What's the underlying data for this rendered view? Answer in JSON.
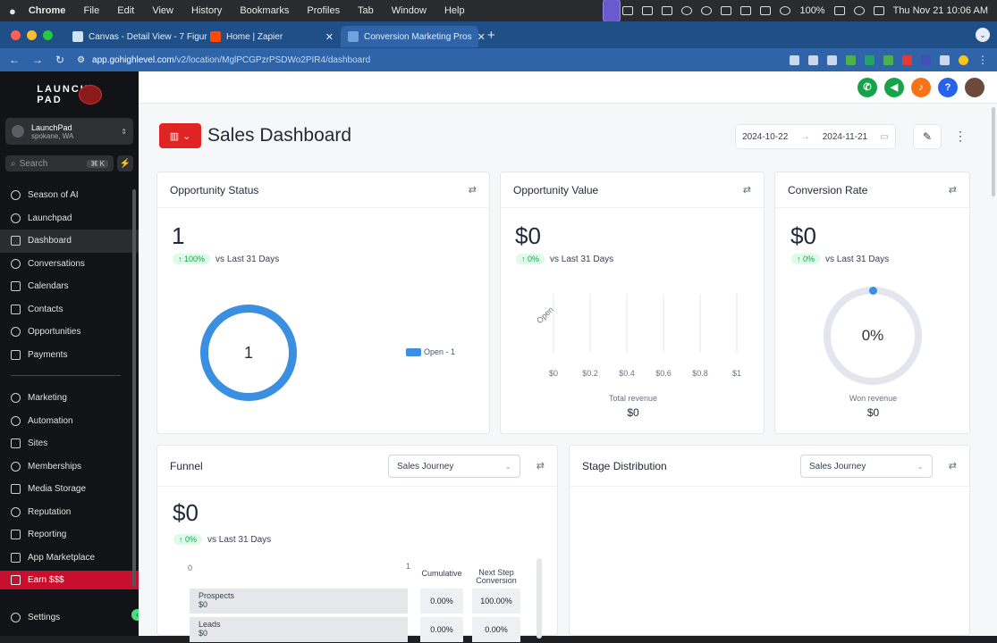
{
  "menubar": {
    "app": "Chrome",
    "items": [
      "File",
      "Edit",
      "View",
      "History",
      "Bookmarks",
      "Profiles",
      "Tab",
      "Window",
      "Help"
    ],
    "battery": "100%",
    "clock": "Thu Nov 21  10:06 AM"
  },
  "tabs": [
    {
      "title": "Canvas - Detail View - 7 Figur",
      "color": "#cfe3f7"
    },
    {
      "title": "Home | Zapier",
      "color": "#ff4a00"
    },
    {
      "title": "Conversion Marketing Pros",
      "color": "#3b6fb0"
    }
  ],
  "address": {
    "host": "app.gohighlevel.com",
    "path": "/v2/location/MglPCGPzrPSDWo2PIR4/dashboard"
  },
  "sidebar": {
    "logo_line1": "LAUNCH",
    "logo_line2": "PAD",
    "account_name": "LaunchPad",
    "account_location": "spokane, WA",
    "search_placeholder": "Search",
    "search_shortcut": "⌘ K",
    "items_top": [
      {
        "label": "Season of AI",
        "icon": "sparkle-icon"
      },
      {
        "label": "Launchpad",
        "icon": "rocket-icon"
      },
      {
        "label": "Dashboard",
        "icon": "grid-icon",
        "active": true
      },
      {
        "label": "Conversations",
        "icon": "chat-icon"
      },
      {
        "label": "Calendars",
        "icon": "calendar-icon"
      },
      {
        "label": "Contacts",
        "icon": "contacts-icon"
      },
      {
        "label": "Opportunities",
        "icon": "opportunities-icon"
      },
      {
        "label": "Payments",
        "icon": "payments-icon"
      }
    ],
    "items_bottom": [
      {
        "label": "Marketing",
        "icon": "megaphone-icon"
      },
      {
        "label": "Automation",
        "icon": "automation-icon"
      },
      {
        "label": "Sites",
        "icon": "globe-icon"
      },
      {
        "label": "Memberships",
        "icon": "memberships-icon"
      },
      {
        "label": "Media Storage",
        "icon": "image-icon"
      },
      {
        "label": "Reputation",
        "icon": "star-icon"
      },
      {
        "label": "Reporting",
        "icon": "chart-icon"
      },
      {
        "label": "App Marketplace",
        "icon": "apps-icon"
      }
    ],
    "earn": "Earn $$$",
    "settings": "Settings"
  },
  "header": {
    "title": "Sales Dashboard",
    "date_start": "2024-10-22",
    "date_arrow": "→",
    "date_end": "2024-11-21"
  },
  "cards": {
    "opportunity_status": {
      "title": "Opportunity Status",
      "value": "1",
      "trend_pct": "100%",
      "trend_text": "vs Last 31 Days",
      "donut_label": "1",
      "legend": "Open - 1"
    },
    "opportunity_value": {
      "title": "Opportunity Value",
      "value": "$0",
      "trend_pct": "0%",
      "trend_text": "vs Last 31 Days",
      "row_label": "Open",
      "ticks": [
        "$0",
        "$0.2",
        "$0.4",
        "$0.6",
        "$0.8",
        "$1"
      ],
      "footer_label": "Total revenue",
      "footer_value": "$0"
    },
    "conversion_rate": {
      "title": "Conversion Rate",
      "value": "$0",
      "trend_pct": "0%",
      "trend_text": "vs Last 31 Days",
      "gauge_label": "0%",
      "footer_label": "Won revenue",
      "footer_value": "$0"
    },
    "funnel": {
      "title": "Funnel",
      "select": "Sales Journey",
      "value": "$0",
      "trend_pct": "0%",
      "trend_text": "vs Last 31 Days",
      "axis_start": "0",
      "axis_end": "1",
      "col_cumulative": "Cumulative",
      "col_next": "Next Step Conversion",
      "rows": [
        {
          "stage": "Prospects",
          "value": "$0",
          "cumulative": "0.00%",
          "next": "100.00%"
        },
        {
          "stage": "Leads",
          "value": "$0",
          "cumulative": "0.00%",
          "next": "0.00%"
        }
      ]
    },
    "stage_distribution": {
      "title": "Stage Distribution",
      "select": "Sales Journey"
    }
  },
  "colors": {
    "accent_red": "#e02424",
    "donut_blue": "#3b8fe0",
    "trend_green": "#16a34a"
  }
}
